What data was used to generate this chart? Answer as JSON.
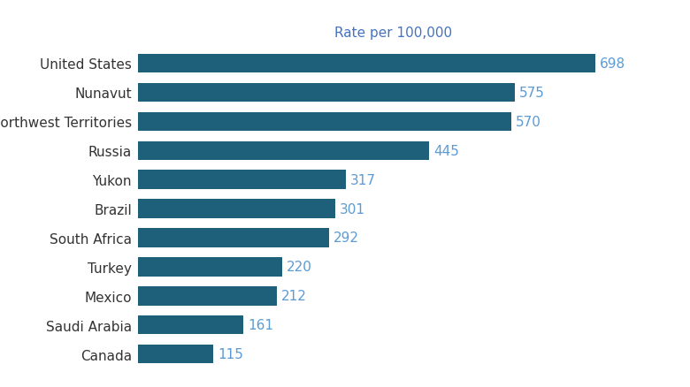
{
  "categories": [
    "Canada",
    "Saudi Arabia",
    "Mexico",
    "Turkey",
    "South Africa",
    "Brazil",
    "Yukon",
    "Russia",
    "Northwest Territories",
    "Nunavut",
    "United States"
  ],
  "values": [
    115,
    161,
    212,
    220,
    292,
    301,
    317,
    445,
    570,
    575,
    698
  ],
  "bar_color": "#1e5f7a",
  "label_color_blue": "#5b9bd5",
  "label_color_dark": "#4a4a4a",
  "subtitle": "Rate per 100,000",
  "subtitle_color": "#4472c4",
  "background_color": "#ffffff",
  "xlim": [
    0,
    780
  ],
  "bar_height": 0.65,
  "label_fontsize": 11,
  "subtitle_fontsize": 11,
  "category_fontsize": 11,
  "value_label_threshold": 300
}
